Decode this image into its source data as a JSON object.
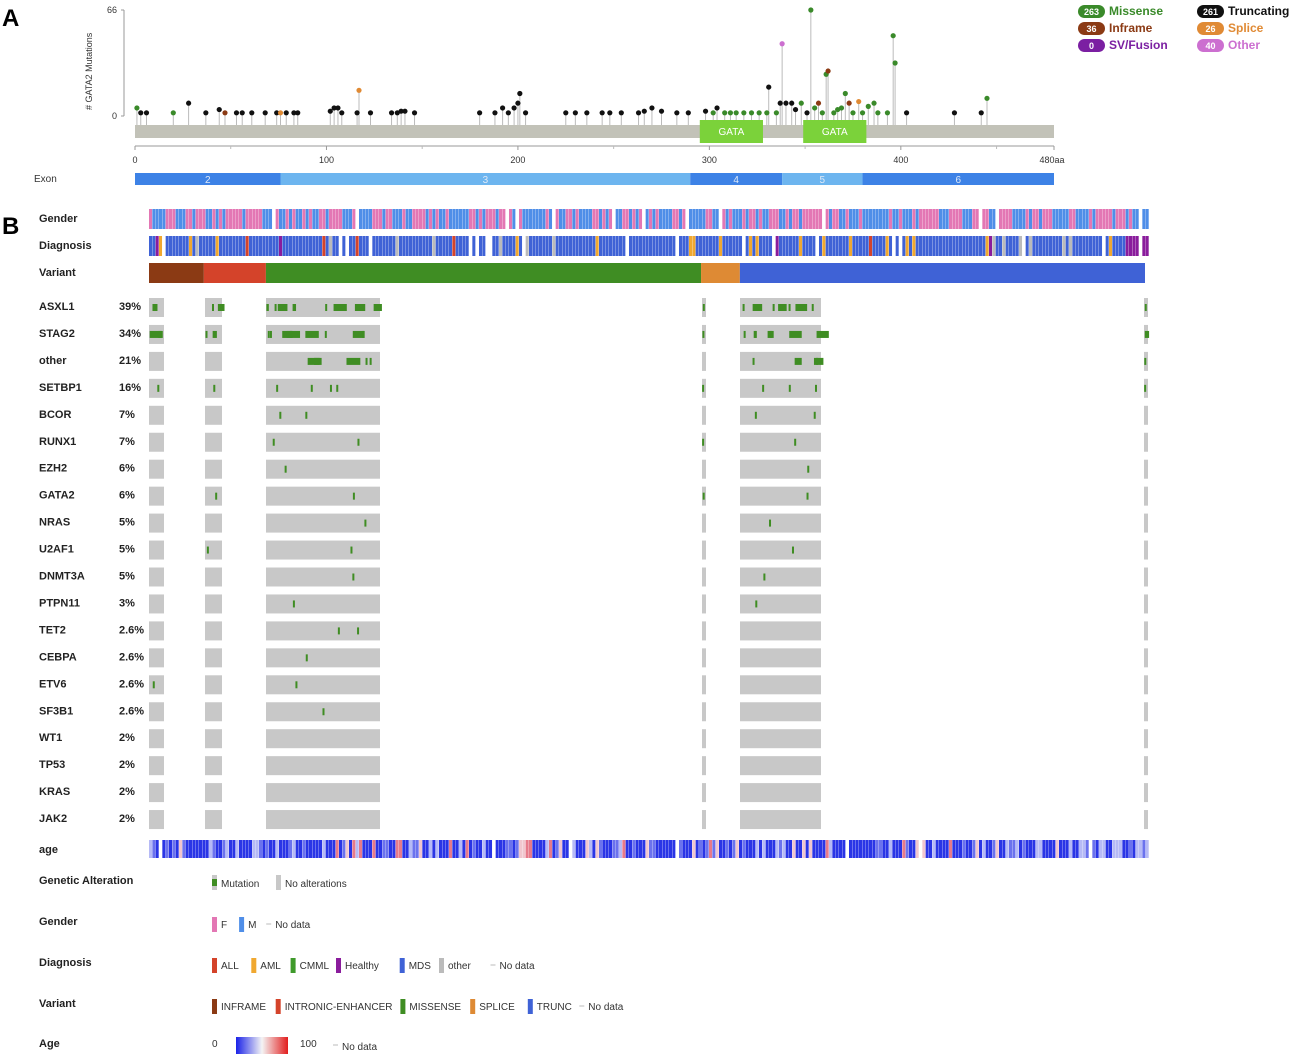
{
  "panel_a": {
    "letter": "A",
    "ylabel": "# GATA2 Mutations",
    "ymax_label": "66",
    "ymin_label": "0",
    "x_ticks": [
      "0",
      "100",
      "200",
      "300",
      "400",
      "480aa"
    ],
    "domains": [
      {
        "label": "GATA",
        "start": 295,
        "end": 328
      },
      {
        "label": "GATA",
        "start": 349,
        "end": 382
      }
    ],
    "exon_label": "Exon",
    "exons": [
      {
        "label": "2",
        "start": 0,
        "end": 76,
        "color": "#3d82e6"
      },
      {
        "label": "3",
        "start": 76,
        "end": 290,
        "color": "#6db5ef"
      },
      {
        "label": "4",
        "start": 290,
        "end": 338,
        "color": "#3d82e6"
      },
      {
        "label": "5",
        "start": 338,
        "end": 380,
        "color": "#6db5ef"
      },
      {
        "label": "6",
        "start": 380,
        "end": 480,
        "color": "#3d82e6"
      }
    ],
    "legend": [
      {
        "count": "263",
        "label": "Missense",
        "color": "#3a8a2a"
      },
      {
        "count": "261",
        "label": "Truncating",
        "color": "#111111"
      },
      {
        "count": "36",
        "label": "Inframe",
        "color": "#8b3a14"
      },
      {
        "count": "26",
        "label": "Splice",
        "color": "#e08a34"
      },
      {
        "count": "0",
        "label": "SV/Fusion",
        "color": "#7b1fa2"
      },
      {
        "count": "40",
        "label": "Other",
        "color": "#cc6fd0"
      }
    ]
  },
  "panel_b": {
    "letter": "B",
    "track_labels": [
      "Gender",
      "Diagnosis",
      "Variant"
    ],
    "genes": [
      {
        "name": "ASXL1",
        "pct": "39%"
      },
      {
        "name": "STAG2",
        "pct": "34%"
      },
      {
        "name": "other",
        "pct": "21%"
      },
      {
        "name": "SETBP1",
        "pct": "16%"
      },
      {
        "name": "BCOR",
        "pct": "7%"
      },
      {
        "name": "RUNX1",
        "pct": "7%"
      },
      {
        "name": "EZH2",
        "pct": "6%"
      },
      {
        "name": "GATA2",
        "pct": "6%"
      },
      {
        "name": "NRAS",
        "pct": "5%"
      },
      {
        "name": "U2AF1",
        "pct": "5%"
      },
      {
        "name": "DNMT3A",
        "pct": "5%"
      },
      {
        "name": "PTPN11",
        "pct": "3%"
      },
      {
        "name": "TET2",
        "pct": "2.6%"
      },
      {
        "name": "CEBPA",
        "pct": "2.6%"
      },
      {
        "name": "ETV6",
        "pct": "2.6%"
      },
      {
        "name": "SF3B1",
        "pct": "2.6%"
      },
      {
        "name": "WT1",
        "pct": "2%"
      },
      {
        "name": "TP53",
        "pct": "2%"
      },
      {
        "name": "KRAS",
        "pct": "2%"
      },
      {
        "name": "JAK2",
        "pct": "2%"
      }
    ],
    "age_label": "age",
    "variant_segments": [
      {
        "name": "INFRAME",
        "color": "#8b3a14",
        "frac": 0.137
      },
      {
        "name": "INTRONIC-ENHANCER",
        "color": "#d4432a",
        "frac": 0.155
      },
      {
        "name": "MISSENSE",
        "color": "#3f8d23",
        "frac": 1.087
      },
      {
        "name": "SPLICE",
        "color": "#de8a34",
        "frac": 0.097
      },
      {
        "name": "TRUNC",
        "color": "#3f62d6",
        "frac": 1.012
      }
    ],
    "legends": {
      "genetic_alteration": {
        "title": "Genetic Alteration",
        "items": [
          "Mutation",
          "No alterations"
        ]
      },
      "gender": {
        "title": "Gender",
        "items": [
          {
            "label": "F",
            "color": "#e377b4"
          },
          {
            "label": "M",
            "color": "#4f8ee8"
          },
          {
            "label": "No data",
            "color": ""
          }
        ]
      },
      "diagnosis": {
        "title": "Diagnosis",
        "items": [
          {
            "label": "ALL",
            "color": "#d4432a"
          },
          {
            "label": "AML",
            "color": "#f0a830"
          },
          {
            "label": "CMML",
            "color": "#3f9a2b"
          },
          {
            "label": "Healthy",
            "color": "#8a1c9c"
          },
          {
            "label": "MDS",
            "color": "#3f62d6"
          },
          {
            "label": "other",
            "color": "#bbbbbb"
          },
          {
            "label": "No data",
            "color": ""
          }
        ]
      },
      "variant": {
        "title": "Variant",
        "items": [
          {
            "label": "INFRAME",
            "color": "#8b3a14"
          },
          {
            "label": "INTRONIC-ENHANCER",
            "color": "#d4432a"
          },
          {
            "label": "MISSENSE",
            "color": "#3f8d23"
          },
          {
            "label": "SPLICE",
            "color": "#de8a34"
          },
          {
            "label": "TRUNC",
            "color": "#3f62d6"
          },
          {
            "label": "No data",
            "color": ""
          }
        ]
      },
      "age": {
        "title": "Age",
        "min": "0",
        "max": "100",
        "nodata": "No data"
      }
    }
  },
  "chart_data": {
    "type": "lollipop",
    "x_range": [
      0,
      480
    ],
    "y_range": [
      0,
      66
    ],
    "points": [
      [
        1,
        5,
        "missense"
      ],
      [
        3,
        2,
        "trunc"
      ],
      [
        6,
        2,
        "trunc"
      ],
      [
        20,
        2,
        "missense"
      ],
      [
        28,
        8,
        "trunc"
      ],
      [
        37,
        2,
        "trunc"
      ],
      [
        44,
        4,
        "trunc"
      ],
      [
        47,
        2,
        "inframe"
      ],
      [
        53,
        2,
        "trunc"
      ],
      [
        56,
        2,
        "trunc"
      ],
      [
        61,
        2,
        "trunc"
      ],
      [
        68,
        2,
        "trunc"
      ],
      [
        74,
        2,
        "trunc"
      ],
      [
        76,
        2,
        "splice"
      ],
      [
        79,
        2,
        "trunc"
      ],
      [
        83,
        2,
        "trunc"
      ],
      [
        85,
        2,
        "trunc"
      ],
      [
        102,
        3,
        "trunc"
      ],
      [
        104,
        5,
        "trunc"
      ],
      [
        106,
        5,
        "trunc"
      ],
      [
        108,
        2,
        "trunc"
      ],
      [
        116,
        2,
        "trunc"
      ],
      [
        117,
        16,
        "splice"
      ],
      [
        123,
        2,
        "trunc"
      ],
      [
        134,
        2,
        "trunc"
      ],
      [
        137,
        2,
        "trunc"
      ],
      [
        139,
        3,
        "trunc"
      ],
      [
        141,
        3,
        "trunc"
      ],
      [
        146,
        2,
        "trunc"
      ],
      [
        180,
        2,
        "trunc"
      ],
      [
        188,
        2,
        "trunc"
      ],
      [
        192,
        5,
        "trunc"
      ],
      [
        195,
        2,
        "trunc"
      ],
      [
        198,
        5,
        "trunc"
      ],
      [
        200,
        8,
        "trunc"
      ],
      [
        201,
        14,
        "trunc"
      ],
      [
        204,
        2,
        "trunc"
      ],
      [
        225,
        2,
        "trunc"
      ],
      [
        230,
        2,
        "trunc"
      ],
      [
        236,
        2,
        "trunc"
      ],
      [
        244,
        2,
        "trunc"
      ],
      [
        248,
        2,
        "trunc"
      ],
      [
        254,
        2,
        "trunc"
      ],
      [
        263,
        2,
        "trunc"
      ],
      [
        266,
        3,
        "trunc"
      ],
      [
        270,
        5,
        "trunc"
      ],
      [
        275,
        3,
        "trunc"
      ],
      [
        283,
        2,
        "trunc"
      ],
      [
        289,
        2,
        "trunc"
      ],
      [
        298,
        3,
        "trunc"
      ],
      [
        302,
        2,
        "missense"
      ],
      [
        304,
        5,
        "trunc"
      ],
      [
        308,
        2,
        "missense"
      ],
      [
        311,
        2,
        "missense"
      ],
      [
        314,
        2,
        "missense"
      ],
      [
        318,
        2,
        "missense"
      ],
      [
        322,
        2,
        "missense"
      ],
      [
        326,
        2,
        "missense"
      ],
      [
        330,
        2,
        "missense"
      ],
      [
        331,
        18,
        "trunc"
      ],
      [
        335,
        2,
        "missense"
      ],
      [
        337,
        8,
        "trunc"
      ],
      [
        338,
        45,
        "other"
      ],
      [
        340,
        8,
        "trunc"
      ],
      [
        343,
        8,
        "trunc"
      ],
      [
        345,
        4,
        "trunc"
      ],
      [
        348,
        8,
        "missense"
      ],
      [
        351,
        2,
        "trunc"
      ],
      [
        353,
        66,
        "missense"
      ],
      [
        355,
        5,
        "missense"
      ],
      [
        357,
        8,
        "inframe"
      ],
      [
        359,
        2,
        "missense"
      ],
      [
        361,
        26,
        "missense"
      ],
      [
        362,
        28,
        "inframe"
      ],
      [
        365,
        2,
        "missense"
      ],
      [
        367,
        4,
        "missense"
      ],
      [
        369,
        5,
        "missense"
      ],
      [
        371,
        14,
        "missense"
      ],
      [
        373,
        8,
        "inframe"
      ],
      [
        375,
        2,
        "missense"
      ],
      [
        378,
        9,
        "splice"
      ],
      [
        380,
        2,
        "missense"
      ],
      [
        383,
        6,
        "missense"
      ],
      [
        386,
        8,
        "missense"
      ],
      [
        388,
        2,
        "missense"
      ],
      [
        393,
        2,
        "missense"
      ],
      [
        396,
        50,
        "missense"
      ],
      [
        397,
        33,
        "missense"
      ],
      [
        403,
        2,
        "trunc"
      ],
      [
        428,
        2,
        "trunc"
      ],
      [
        442,
        2,
        "trunc"
      ],
      [
        445,
        11,
        "missense"
      ]
    ],
    "legend_counts": {
      "Missense": 263,
      "Truncating": 261,
      "Inframe": 36,
      "Splice": 26,
      "SV/Fusion": 0,
      "Other": 40
    }
  }
}
